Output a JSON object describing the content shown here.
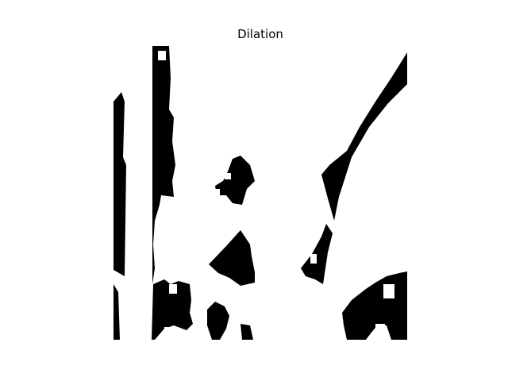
{
  "figure": {
    "title": "Dilation"
  },
  "image": {
    "kind": "binary morphology result (dilated mask)",
    "colors": {
      "foreground": "#ffffff",
      "background": "#000000",
      "page": "#ffffff"
    }
  }
}
